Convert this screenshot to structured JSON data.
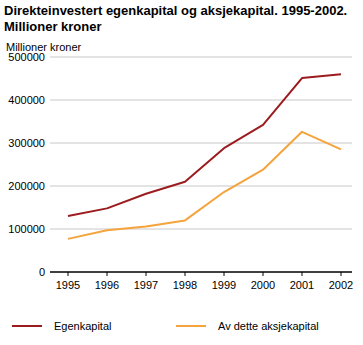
{
  "chart_data": {
    "type": "line",
    "title": "Direkteinvestert egenkapital og aksjekapital. 1995-2002.",
    "subtitle": "Millioner kroner",
    "y_label": "Millioner kroner",
    "categories": [
      "1995",
      "1996",
      "1997",
      "1998",
      "1999",
      "2000",
      "2001",
      "2002"
    ],
    "series": [
      {
        "name": "Egenkapital",
        "color": "#9b1c1f",
        "values": [
          130000,
          148000,
          182000,
          210000,
          288000,
          342000,
          451000,
          460000
        ]
      },
      {
        "name": "Av dette aksjekapital",
        "color": "#f5a33c",
        "values": [
          77000,
          97000,
          106000,
          120000,
          186000,
          238000,
          326000,
          285000
        ]
      }
    ],
    "ylim": [
      0,
      500000
    ],
    "yticks": [
      0,
      100000,
      200000,
      300000,
      400000,
      500000
    ],
    "grid": true,
    "legend": "bottom"
  }
}
